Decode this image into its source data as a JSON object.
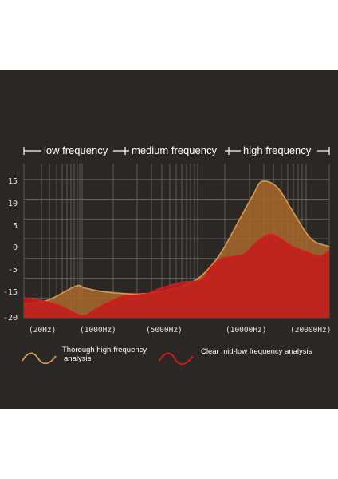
{
  "chart_data": {
    "type": "area",
    "bands": [
      {
        "label": "low frequency"
      },
      {
        "label": "medium frequency"
      },
      {
        "label": "high frequency"
      }
    ],
    "y_ticks": [
      "15",
      "10",
      "5",
      "0",
      "-5",
      "-15",
      "-20"
    ],
    "x_ticks": [
      "(20Hz)",
      "(1000Hz)",
      "(5000Hz)",
      "(10000Hz)",
      "(20000Hz)"
    ],
    "grid": true,
    "series": [
      {
        "name": "Thorough high-frequency analysis",
        "color": "#d89a4c",
        "fill": "#a8692c",
        "points": [
          [
            0,
            -16.5
          ],
          [
            0.08,
            -15.5
          ],
          [
            0.17,
            -12
          ],
          [
            0.2,
            -12.5
          ],
          [
            0.27,
            -13.5
          ],
          [
            0.38,
            -14
          ],
          [
            0.47,
            -13
          ],
          [
            0.55,
            -11
          ],
          [
            0.6,
            -8
          ],
          [
            0.65,
            -3
          ],
          [
            0.7,
            4
          ],
          [
            0.75,
            11
          ],
          [
            0.78,
            14.5
          ],
          [
            0.83,
            13
          ],
          [
            0.88,
            7
          ],
          [
            0.94,
            0
          ],
          [
            1.0,
            -2
          ]
        ]
      },
      {
        "name": "Clear mid-low frequency analysis",
        "color": "#e01818",
        "fill": "#c41c1c",
        "points": [
          [
            0,
            -15
          ],
          [
            0.05,
            -15.5
          ],
          [
            0.12,
            -17
          ],
          [
            0.19,
            -19.5
          ],
          [
            0.23,
            -18
          ],
          [
            0.28,
            -16
          ],
          [
            0.33,
            -14.5
          ],
          [
            0.4,
            -14
          ],
          [
            0.45,
            -12.5
          ],
          [
            0.52,
            -11
          ],
          [
            0.58,
            -10.5
          ],
          [
            0.61,
            -7.5
          ],
          [
            0.65,
            -5
          ],
          [
            0.72,
            -4
          ],
          [
            0.76,
            -1
          ],
          [
            0.8,
            1
          ],
          [
            0.83,
            0.5
          ],
          [
            0.88,
            -2
          ],
          [
            0.93,
            -3.5
          ],
          [
            0.97,
            -4.5
          ],
          [
            1.0,
            -3
          ]
        ]
      }
    ],
    "legend": [
      {
        "label_line1": "Thorough high-frequency",
        "label_line2": "analysis"
      },
      {
        "label_line1": "Clear mid-low frequency analysis",
        "label_line2": ""
      }
    ]
  }
}
